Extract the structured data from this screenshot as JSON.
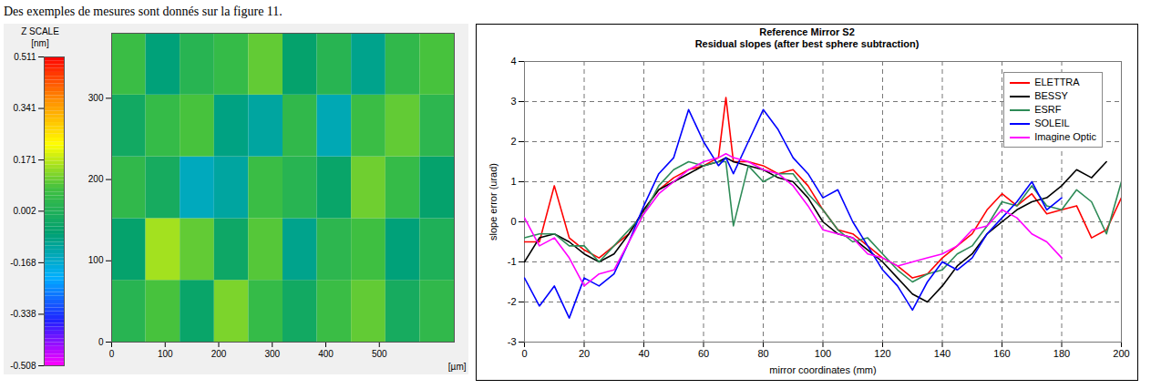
{
  "text": "Des exemples de mesures sont donnés sur la figure 11.",
  "chart_data": [
    {
      "type": "heatmap",
      "x_label": "[µm]",
      "xlim": [
        0,
        640
      ],
      "ylim": [
        0,
        380
      ],
      "xticks": [
        0,
        100,
        200,
        300,
        400,
        500
      ],
      "yticks": [
        0,
        100,
        200,
        300
      ],
      "x_edges": [
        0,
        64,
        128,
        192,
        256,
        320,
        384,
        448,
        512,
        576,
        640
      ],
      "y_edges": [
        0,
        76,
        152,
        228,
        304,
        380
      ],
      "cells": [
        [
          0.02,
          0.08,
          -0.05,
          0.12,
          0.05,
          -0.03,
          0.06,
          0.1,
          -0.02,
          0.04
        ],
        [
          -0.06,
          0.15,
          0.1,
          -0.04,
          0.09,
          -0.1,
          0.03,
          0.07,
          -0.08,
          0.0
        ],
        [
          0.04,
          -0.02,
          -0.15,
          -0.12,
          0.06,
          0.02,
          -0.05,
          0.11,
          0.05,
          -0.06
        ],
        [
          -0.03,
          0.05,
          0.08,
          -0.09,
          -0.12,
          0.04,
          -0.14,
          0.06,
          0.1,
          0.03
        ],
        [
          0.06,
          -0.08,
          0.02,
          0.05,
          0.1,
          -0.06,
          0.02,
          -0.1,
          0.04,
          0.08
        ]
      ],
      "colorbar": {
        "title": "Z SCALE",
        "unit": "[nm]",
        "range": [
          -0.508,
          0.511
        ],
        "ticks": [
          -0.508,
          -0.338,
          -0.168,
          0.002,
          0.171,
          0.341,
          0.511
        ],
        "colors": [
          "#ff00ff",
          "#2020ff",
          "#00b0ff",
          "#00a070",
          "#40c040",
          "#ffff00",
          "#ff9000",
          "#ff0000"
        ]
      }
    },
    {
      "type": "line",
      "title": "Reference Mirror S2",
      "subtitle": "Residual slopes (after best sphere subtraction)",
      "x_label": "mirror coordinates (mm)",
      "y_label": "slope error (urad)",
      "xlim": [
        0,
        200
      ],
      "ylim": [
        -3,
        4
      ],
      "xticks": [
        0,
        20,
        40,
        60,
        80,
        100,
        120,
        140,
        160,
        180,
        200
      ],
      "yticks": [
        -3,
        -2,
        -1,
        0,
        1,
        2,
        3,
        4
      ],
      "grid": true,
      "legend": "top-right",
      "x": [
        0,
        5,
        10,
        15,
        20,
        25,
        30,
        35,
        40,
        45,
        50,
        55,
        60,
        65,
        67.5,
        70,
        75,
        80,
        85,
        90,
        95,
        100,
        105,
        110,
        115,
        120,
        125,
        130,
        135,
        140,
        145,
        150,
        155,
        160,
        165,
        170,
        175,
        180,
        185,
        190,
        195,
        200
      ],
      "series": [
        {
          "name": "ELETTRA",
          "color": "#ff0000",
          "values": [
            -0.5,
            -0.5,
            0.9,
            -0.4,
            -0.7,
            -0.9,
            -0.6,
            -0.3,
            0.3,
            0.8,
            1.1,
            1.3,
            1.4,
            1.6,
            3.1,
            1.5,
            1.5,
            1.4,
            1.2,
            1.3,
            0.9,
            0.3,
            -0.2,
            -0.3,
            -0.6,
            -0.9,
            -1.1,
            -1.4,
            -1.3,
            -0.9,
            -0.6,
            -0.3,
            0.3,
            0.7,
            0.4,
            0.7,
            0.2,
            0.3,
            0.4,
            -0.4,
            -0.2,
            0.6
          ]
        },
        {
          "name": "BESSY",
          "color": "#000000",
          "values": [
            -1.0,
            -0.4,
            -0.3,
            -0.5,
            -0.8,
            -1.0,
            -0.8,
            -0.3,
            0.3,
            0.8,
            1.0,
            1.2,
            1.4,
            1.5,
            1.6,
            1.5,
            1.4,
            1.3,
            1.1,
            1.0,
            0.6,
            0.0,
            -0.3,
            -0.4,
            -0.7,
            -1.0,
            -1.4,
            -1.8,
            -2.0,
            -1.6,
            -1.1,
            -0.8,
            -0.3,
            0.0,
            0.3,
            0.5,
            0.6,
            0.9,
            1.3,
            1.1,
            1.5,
            null
          ]
        },
        {
          "name": "ESRF",
          "color": "#2e8b57",
          "values": [
            -0.4,
            -0.3,
            -0.3,
            -0.6,
            -0.6,
            -1.0,
            -0.6,
            -0.2,
            0.2,
            0.9,
            1.3,
            1.5,
            1.4,
            1.5,
            1.5,
            -0.1,
            1.4,
            1.0,
            1.2,
            1.2,
            0.7,
            0.3,
            -0.2,
            -0.5,
            -0.4,
            -0.8,
            -1.2,
            -1.5,
            -1.3,
            -1.2,
            -0.8,
            -0.6,
            -0.1,
            0.5,
            0.4,
            0.9,
            0.4,
            0.3,
            0.8,
            0.5,
            -0.3,
            1.0
          ]
        },
        {
          "name": "SOLEIL",
          "color": "#0000ff",
          "values": [
            -1.4,
            -2.1,
            -1.6,
            -2.4,
            -1.4,
            -1.6,
            -1.3,
            -0.5,
            0.4,
            1.2,
            1.6,
            2.8,
            2.0,
            1.4,
            1.6,
            1.2,
            2.0,
            2.8,
            2.3,
            1.6,
            1.2,
            0.6,
            0.8,
            0.0,
            -0.6,
            -1.2,
            -1.6,
            -2.2,
            -1.5,
            -1.0,
            -1.2,
            -0.9,
            -0.3,
            0.1,
            0.5,
            1.0,
            0.3,
            0.6,
            null,
            null,
            null,
            null
          ]
        },
        {
          "name": "Imagine Optic",
          "color": "#ff00ff",
          "values": [
            0.1,
            -0.6,
            -0.4,
            -0.9,
            -1.6,
            -1.3,
            -1.2,
            -0.5,
            0.2,
            0.7,
            1.0,
            1.3,
            1.5,
            1.6,
            1.7,
            1.6,
            1.5,
            1.3,
            1.2,
            0.9,
            0.4,
            -0.2,
            -0.3,
            -0.4,
            -0.8,
            -0.9,
            -1.1,
            -1.0,
            -0.9,
            -0.8,
            -0.6,
            -0.2,
            -0.1,
            0.3,
            0.1,
            -0.3,
            -0.5,
            -0.9,
            null,
            null,
            null,
            null
          ]
        }
      ]
    }
  ]
}
